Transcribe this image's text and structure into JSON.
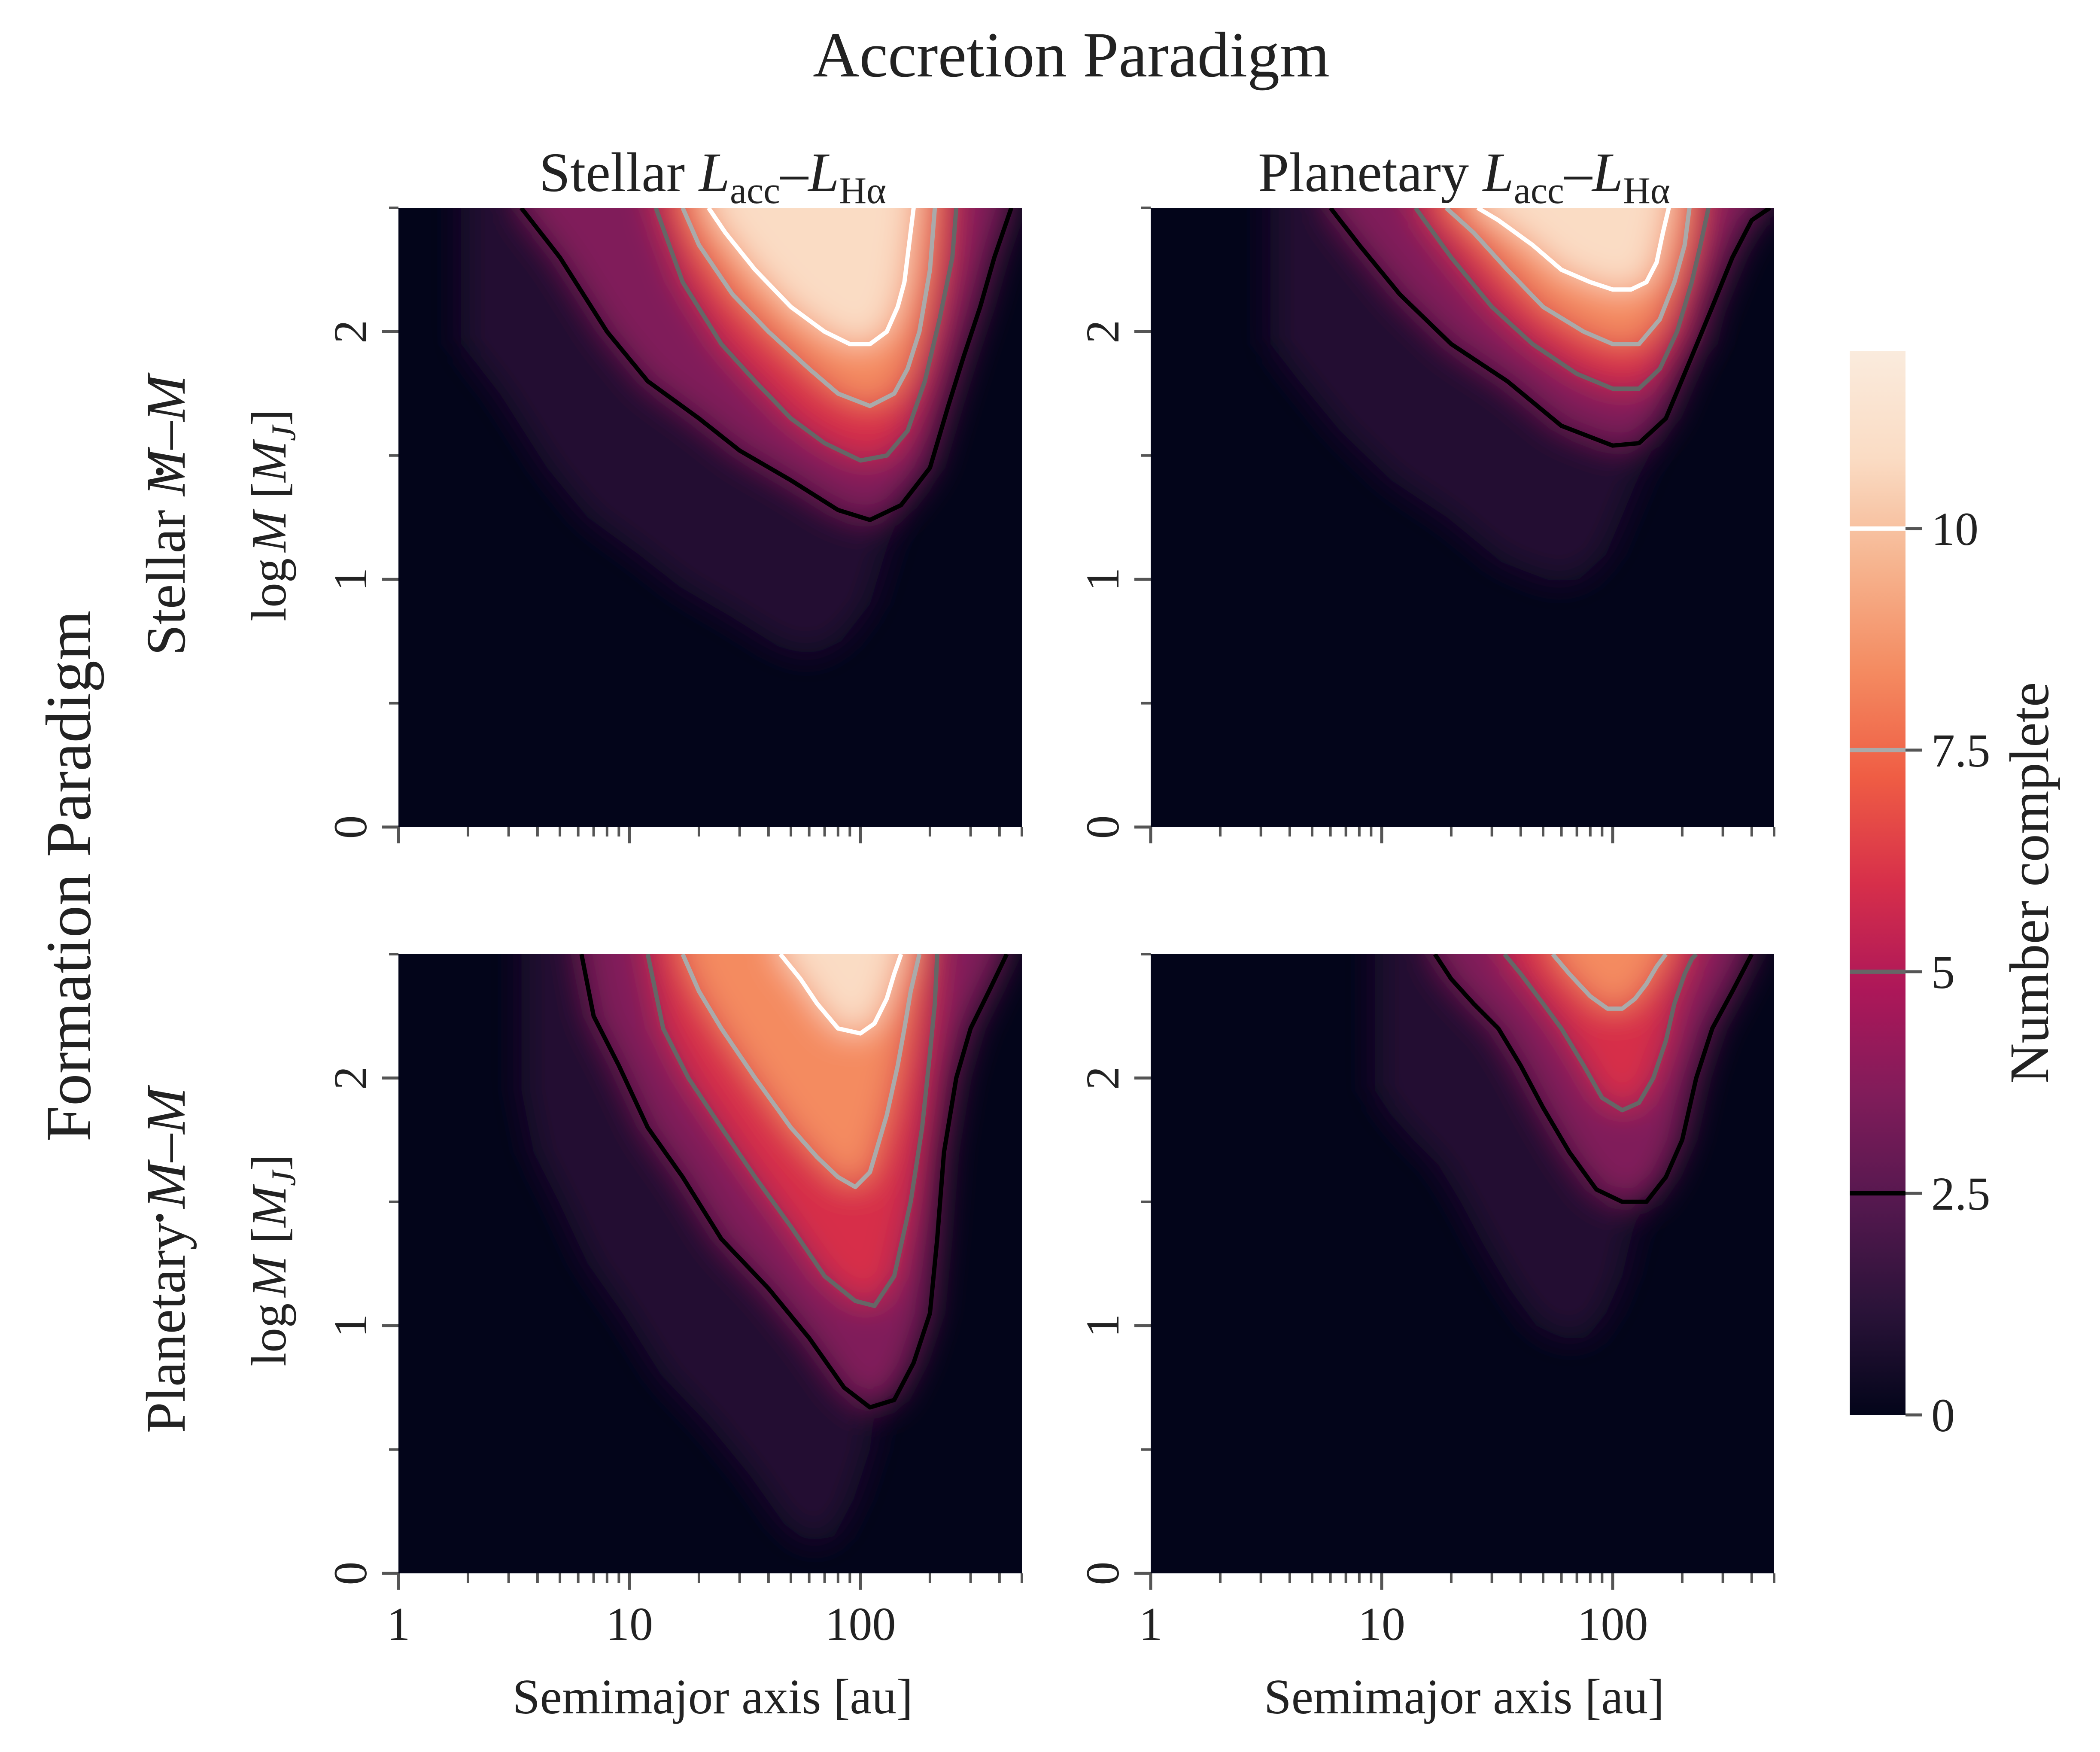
{
  "chart_data": {
    "type": "heatmap",
    "title": "Accretion Paradigm",
    "column_titles": [
      {
        "base": "Stellar ",
        "L1": "L",
        "sub1": "acc",
        "dash": "–",
        "L2": "L",
        "sub2": "Hα"
      },
      {
        "base": "Planetary ",
        "L1": "L",
        "sub1": "acc",
        "dash": "–",
        "L2": "L",
        "sub2": "Hα"
      }
    ],
    "row_group_label": "Formation Paradigm",
    "row_titles": [
      {
        "base": "Stellar ",
        "mdot": "M",
        "dash": "–",
        "m": "M"
      },
      {
        "base": "Planetary ",
        "mdot": "M",
        "dash": "–",
        "m": "M"
      }
    ],
    "xlabel": "Semimajor axis [au]",
    "ylabel": {
      "log": "log",
      "M": "M",
      "unit_open": " [",
      "MJ": "M",
      "J": "J",
      "unit_close": "]"
    },
    "x_scale": "log",
    "xlim": [
      1,
      500
    ],
    "ylim": [
      0,
      2.5
    ],
    "xticks": [
      1,
      10,
      100
    ],
    "xtick_labels": [
      "1",
      "10",
      "100"
    ],
    "yticks": [
      0,
      1,
      2
    ],
    "ytick_labels": [
      "0",
      "1",
      "2"
    ],
    "colorbar": {
      "label": "Number complete",
      "range": [
        0,
        12
      ],
      "ticks": [
        0,
        2.5,
        5,
        7.5,
        10
      ],
      "tick_labels": [
        "0",
        "2.5",
        "5",
        "7.5",
        "10"
      ],
      "colormap": [
        "#03051a",
        "#2b1339",
        "#55184f",
        "#801c5a",
        "#ad1759",
        "#d72f4a",
        "#ef5d44",
        "#f48b61",
        "#f6b48f",
        "#fadcc4",
        "#faebdd"
      ]
    },
    "contour_levels": [
      2.5,
      5,
      7.5,
      10
    ],
    "contour_colors": [
      "#000000",
      "#666666",
      "#aaaaaa",
      "#ffffff"
    ],
    "panels": [
      {
        "row": "Stellar Ṁ–M",
        "col": "Stellar Lacc–LHα",
        "contours": [
          {
            "level": 2.5,
            "x": [
              3.4,
              5,
              8,
              12,
              20,
              30,
              50,
              80,
              110,
              150,
              200,
              240,
              280,
              330,
              380,
              450
            ],
            "y": [
              2.5,
              2.3,
              2.0,
              1.8,
              1.65,
              1.52,
              1.4,
              1.28,
              1.24,
              1.3,
              1.45,
              1.7,
              1.9,
              2.1,
              2.3,
              2.5
            ]
          },
          {
            "level": 5,
            "x": [
              13,
              17,
              25,
              35,
              50,
              70,
              100,
              130,
              160,
              190,
              220,
              250,
              260
            ],
            "y": [
              2.5,
              2.2,
              1.95,
              1.8,
              1.65,
              1.55,
              1.48,
              1.5,
              1.6,
              1.8,
              2.05,
              2.3,
              2.5
            ]
          },
          {
            "level": 7.5,
            "x": [
              17,
              20,
              28,
              40,
              60,
              80,
              110,
              140,
              160,
              180,
              200,
              210
            ],
            "y": [
              2.5,
              2.35,
              2.15,
              2.0,
              1.85,
              1.75,
              1.7,
              1.75,
              1.85,
              2.0,
              2.25,
              2.5
            ]
          },
          {
            "level": 10,
            "x": [
              22,
              26,
              35,
              50,
              70,
              90,
              110,
              130,
              145,
              155,
              170
            ],
            "y": [
              2.5,
              2.4,
              2.25,
              2.1,
              2.0,
              1.95,
              1.95,
              2.0,
              2.1,
              2.2,
              2.5
            ]
          }
        ]
      },
      {
        "row": "Stellar Ṁ–M",
        "col": "Planetary Lacc–LHα",
        "contours": [
          {
            "level": 2.5,
            "x": [
              6,
              8,
              12,
              20,
              35,
              60,
              100,
              130,
              170,
              220,
              270,
              330,
              400,
              480
            ],
            "y": [
              2.5,
              2.35,
              2.15,
              1.95,
              1.8,
              1.62,
              1.54,
              1.55,
              1.65,
              1.9,
              2.1,
              2.3,
              2.45,
              2.5
            ]
          },
          {
            "level": 5,
            "x": [
              14,
              20,
              30,
              45,
              70,
              100,
              130,
              160,
              190,
              220,
              240,
              260
            ],
            "y": [
              2.5,
              2.3,
              2.1,
              1.95,
              1.83,
              1.77,
              1.77,
              1.85,
              2.0,
              2.2,
              2.35,
              2.5
            ]
          },
          {
            "level": 7.5,
            "x": [
              19,
              25,
              35,
              50,
              75,
              100,
              130,
              160,
              185,
              205,
              215
            ],
            "y": [
              2.5,
              2.4,
              2.25,
              2.1,
              2.0,
              1.95,
              1.95,
              2.05,
              2.2,
              2.35,
              2.5
            ]
          },
          {
            "level": 10,
            "x": [
              26,
              32,
              45,
              60,
              80,
              100,
              120,
              140,
              155,
              165,
              175
            ],
            "y": [
              2.5,
              2.45,
              2.35,
              2.25,
              2.2,
              2.17,
              2.17,
              2.2,
              2.28,
              2.4,
              2.5
            ]
          }
        ]
      },
      {
        "row": "Planetary Ṁ–M",
        "col": "Stellar Lacc–LHα",
        "contours": [
          {
            "level": 2.5,
            "x": [
              6.2,
              7,
              9,
              12,
              17,
              25,
              40,
              60,
              85,
              110,
              140,
              170,
              200,
              215,
              230,
              260,
              300,
              360,
              430
            ],
            "y": [
              2.5,
              2.25,
              2.05,
              1.8,
              1.6,
              1.35,
              1.15,
              0.95,
              0.75,
              0.67,
              0.7,
              0.85,
              1.05,
              1.35,
              1.7,
              2.0,
              2.2,
              2.35,
              2.5
            ]
          },
          {
            "level": 5,
            "x": [
              12,
              14,
              18,
              25,
              35,
              50,
              70,
              95,
              115,
              140,
              165,
              185,
              200,
              210,
              215
            ],
            "y": [
              2.5,
              2.2,
              2.0,
              1.8,
              1.6,
              1.4,
              1.2,
              1.1,
              1.08,
              1.2,
              1.5,
              1.8,
              2.1,
              2.3,
              2.5
            ]
          },
          {
            "level": 7.5,
            "x": [
              17,
              20,
              25,
              35,
              50,
              65,
              80,
              95,
              110,
              130,
              145,
              155,
              165,
              180
            ],
            "y": [
              2.5,
              2.35,
              2.2,
              2.0,
              1.8,
              1.68,
              1.6,
              1.56,
              1.62,
              1.85,
              2.05,
              2.2,
              2.35,
              2.5
            ]
          },
          {
            "level": 10,
            "x": [
              45,
              55,
              65,
              80,
              100,
              115,
              130,
              140,
              150
            ],
            "y": [
              2.5,
              2.4,
              2.3,
              2.2,
              2.18,
              2.22,
              2.32,
              2.42,
              2.5
            ]
          }
        ]
      },
      {
        "row": "Planetary Ṁ–M",
        "col": "Planetary Lacc–LHα",
        "contours": [
          {
            "level": 2.5,
            "x": [
              17,
              20,
              25,
              32,
              40,
              50,
              65,
              85,
              110,
              140,
              170,
              200,
              230,
              270,
              330,
              400
            ],
            "y": [
              2.5,
              2.4,
              2.3,
              2.2,
              2.05,
              1.88,
              1.7,
              1.55,
              1.5,
              1.5,
              1.6,
              1.75,
              2.0,
              2.2,
              2.35,
              2.5
            ]
          },
          {
            "level": 5,
            "x": [
              34,
              40,
              50,
              60,
              75,
              90,
              110,
              130,
              150,
              170,
              185,
              205,
              220,
              230
            ],
            "y": [
              2.5,
              2.42,
              2.3,
              2.2,
              2.05,
              1.92,
              1.87,
              1.9,
              2.0,
              2.15,
              2.3,
              2.42,
              2.48,
              2.5
            ]
          },
          {
            "level": 7.5,
            "x": [
              55,
              65,
              80,
              95,
              110,
              125,
              140,
              155,
              170
            ],
            "y": [
              2.5,
              2.42,
              2.33,
              2.28,
              2.28,
              2.32,
              2.38,
              2.45,
              2.5
            ]
          }
        ]
      }
    ]
  }
}
